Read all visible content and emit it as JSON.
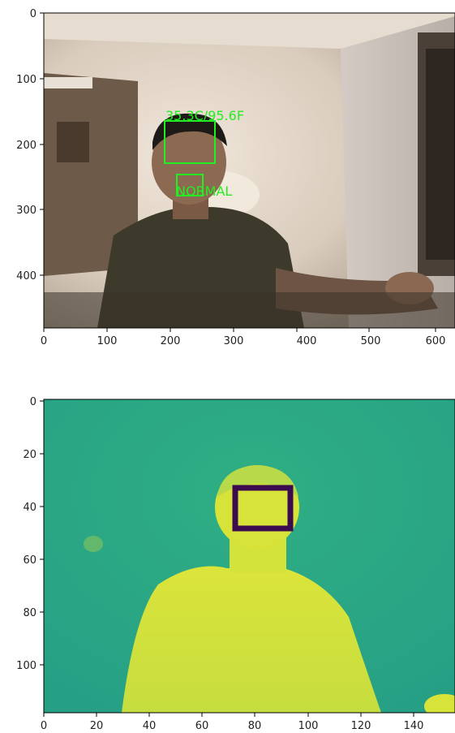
{
  "panels": [
    {
      "name": "rgb-camera",
      "x_ticks": [
        "0",
        "100",
        "200",
        "300",
        "400",
        "500",
        "600"
      ],
      "y_ticks": [
        "0",
        "100",
        "200",
        "300",
        "400"
      ],
      "annotations": {
        "temperature": "35.3C/95.6F",
        "status": "NORMAL"
      },
      "box_color": "#22ee22"
    },
    {
      "name": "thermal",
      "x_ticks": [
        "0",
        "20",
        "40",
        "60",
        "80",
        "100",
        "120",
        "140"
      ],
      "y_ticks": [
        "0",
        "20",
        "40",
        "60",
        "80",
        "100"
      ],
      "box_color": "#3b0a4f"
    }
  ],
  "colors": {
    "thermal_background": "#2aa886",
    "thermal_hot": "#d6e33a",
    "thermal_box": "#3b0a4f",
    "annotation": "#22ee22"
  }
}
